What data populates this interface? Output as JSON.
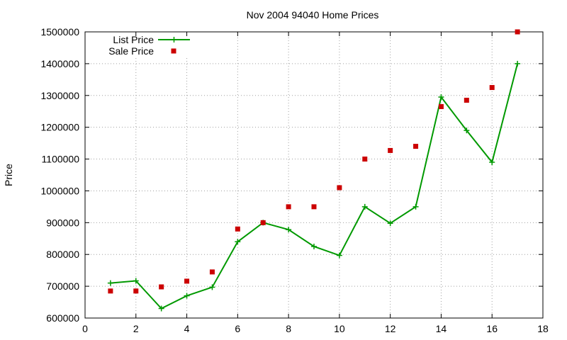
{
  "chart_data": {
    "type": "line",
    "title": "Nov 2004 94040 Home Prices",
    "xlabel": "",
    "ylabel": "Price",
    "xlim": [
      0,
      18
    ],
    "ylim": [
      600000,
      1500000
    ],
    "xticks": [
      0,
      2,
      4,
      6,
      8,
      10,
      12,
      14,
      16,
      18
    ],
    "yticks": [
      600000,
      700000,
      800000,
      900000,
      1000000,
      1100000,
      1200000,
      1300000,
      1400000,
      1500000
    ],
    "grid": true,
    "legend_position": "top-left",
    "series": [
      {
        "name": "List Price",
        "style": "line+cross",
        "color": "#009900",
        "x": [
          1,
          2,
          3,
          4,
          5,
          6,
          7,
          8,
          9,
          10,
          11,
          12,
          13,
          14,
          15,
          16,
          17
        ],
        "y": [
          710000,
          717000,
          630000,
          670000,
          697000,
          840000,
          900000,
          878000,
          825000,
          797000,
          950000,
          898000,
          950000,
          1295000,
          1190000,
          1090000,
          1400000
        ]
      },
      {
        "name": "Sale Price",
        "style": "square",
        "color": "#cc0000",
        "x": [
          1,
          2,
          3,
          4,
          5,
          6,
          7,
          8,
          9,
          10,
          11,
          12,
          13,
          14,
          15,
          16,
          17
        ],
        "y": [
          685000,
          685000,
          698000,
          716000,
          745000,
          880000,
          900000,
          950000,
          950000,
          1010000,
          1100000,
          1127000,
          1140000,
          1265000,
          1285000,
          1325000,
          1500000
        ]
      }
    ]
  }
}
